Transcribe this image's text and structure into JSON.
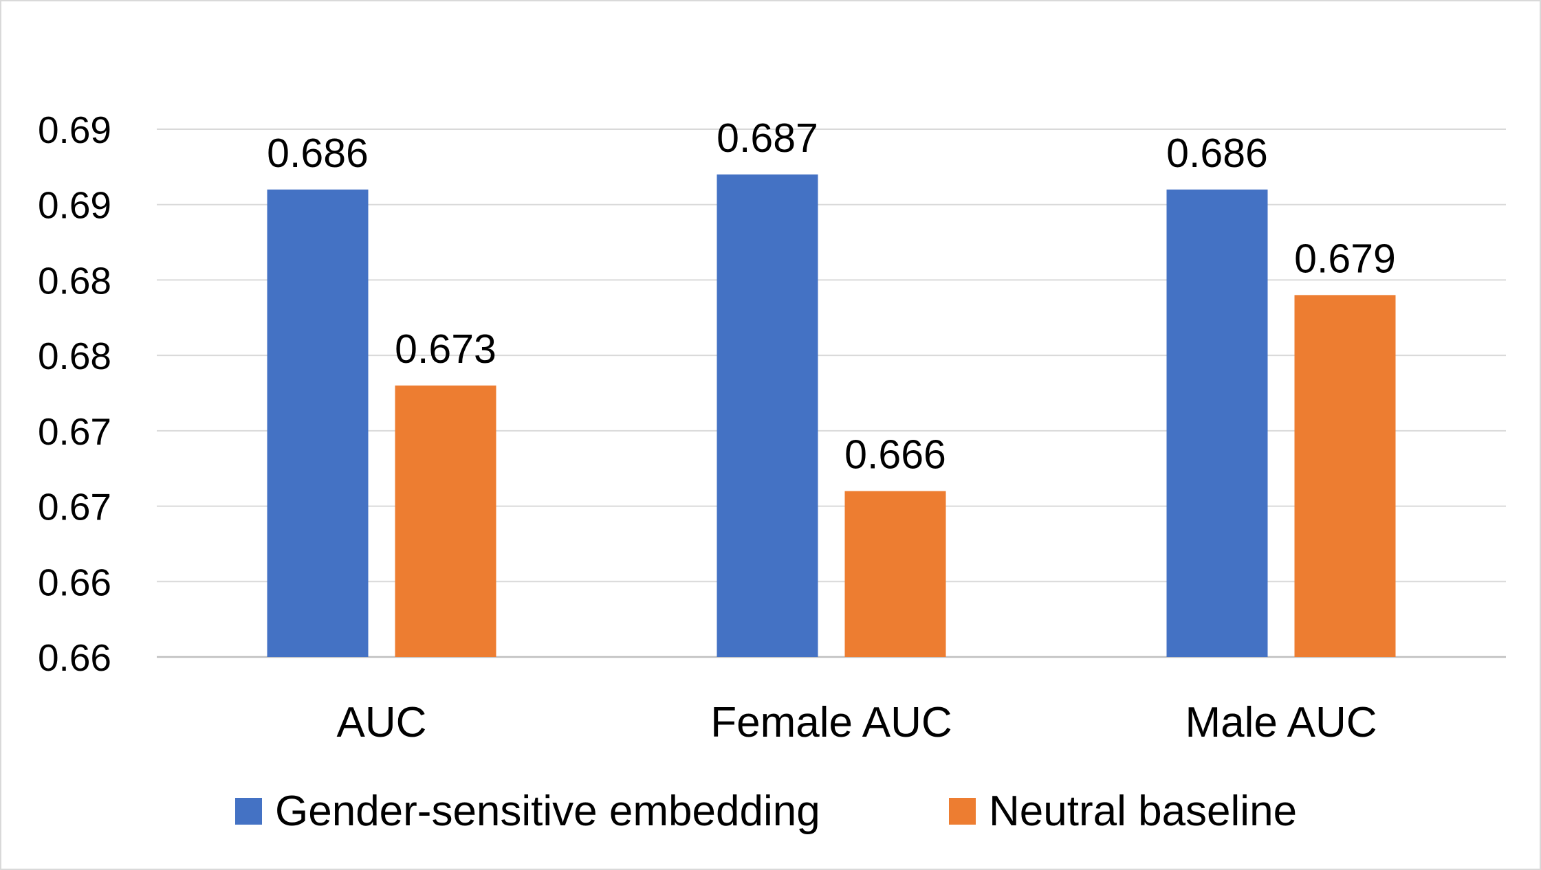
{
  "chart_data": {
    "type": "bar",
    "categories": [
      "AUC",
      "Female AUC",
      "Male AUC"
    ],
    "series": [
      {
        "name": "Gender-sensitive embedding",
        "values": [
          0.686,
          0.687,
          0.686
        ],
        "color": "#4472C4"
      },
      {
        "name": "Neutral baseline",
        "values": [
          0.673,
          0.666,
          0.679
        ],
        "color": "#ED7D31"
      }
    ],
    "ylim": [
      0.655,
      0.69
    ],
    "yticks": [
      0.655,
      0.66,
      0.665,
      0.67,
      0.675,
      0.68,
      0.685,
      0.69
    ],
    "ytick_labels": [
      "0.66",
      "0.66",
      "0.67",
      "0.67",
      "0.68",
      "0.68",
      "0.69",
      "0.69"
    ],
    "grid": true,
    "legend_position": "bottom",
    "title": "",
    "xlabel": "",
    "ylabel": ""
  }
}
